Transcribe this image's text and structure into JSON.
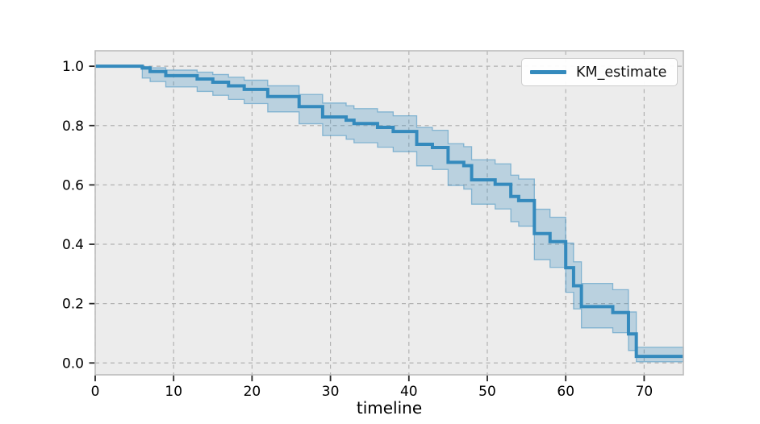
{
  "chart_data": {
    "type": "line",
    "variant": "kaplan-meier-step-with-confidence-band",
    "title": "",
    "xlabel": "timeline",
    "ylabel": "",
    "legend": {
      "label": "KM_estimate",
      "position": "upper-right"
    },
    "grid": true,
    "grid_style": "dashed",
    "xlim": [
      0,
      75
    ],
    "ylim": [
      -0.04,
      1.052
    ],
    "x_ticks": [
      0,
      10,
      20,
      30,
      40,
      50,
      60,
      70
    ],
    "y_ticks": [
      0.0,
      0.2,
      0.4,
      0.6,
      0.8,
      1.0
    ],
    "series": [
      {
        "name": "KM_estimate",
        "step": "post",
        "x": [
          0,
          6,
          7,
          9,
          13,
          15,
          17,
          19,
          22,
          26,
          29,
          32,
          33,
          36,
          38,
          41,
          43,
          45,
          47,
          48,
          51,
          53,
          54,
          56,
          58,
          60,
          61,
          62,
          66,
          68,
          69,
          75
        ],
        "y": [
          1.0,
          0.994,
          0.982,
          0.968,
          0.957,
          0.946,
          0.934,
          0.922,
          0.898,
          0.864,
          0.829,
          0.818,
          0.807,
          0.794,
          0.78,
          0.737,
          0.726,
          0.676,
          0.665,
          0.617,
          0.602,
          0.561,
          0.547,
          0.436,
          0.409,
          0.321,
          0.26,
          0.19,
          0.17,
          0.098,
          0.022,
          0.022
        ],
        "ci_lower": [
          1.0,
          0.96,
          0.948,
          0.93,
          0.915,
          0.902,
          0.888,
          0.874,
          0.846,
          0.806,
          0.766,
          0.754,
          0.742,
          0.727,
          0.712,
          0.664,
          0.652,
          0.598,
          0.586,
          0.535,
          0.519,
          0.476,
          0.461,
          0.348,
          0.322,
          0.238,
          0.182,
          0.118,
          0.102,
          0.042,
          0.004,
          0.004
        ],
        "ci_upper": [
          1.0,
          0.999,
          0.995,
          0.987,
          0.98,
          0.972,
          0.963,
          0.953,
          0.934,
          0.905,
          0.876,
          0.867,
          0.857,
          0.846,
          0.833,
          0.794,
          0.784,
          0.739,
          0.729,
          0.685,
          0.671,
          0.633,
          0.62,
          0.518,
          0.491,
          0.404,
          0.341,
          0.268,
          0.247,
          0.172,
          0.053,
          0.053
        ]
      }
    ],
    "colors": {
      "line": "#348abd",
      "band_fill": "rgba(52,138,189,0.27)",
      "band_edge": "rgba(52,138,189,0.5)",
      "plot_background": "#ececec",
      "figure_background": "#ffffff",
      "grid": "#b2b2b2",
      "spine": "#bcbcbc",
      "tick": "#262626",
      "text": "#000000"
    }
  }
}
